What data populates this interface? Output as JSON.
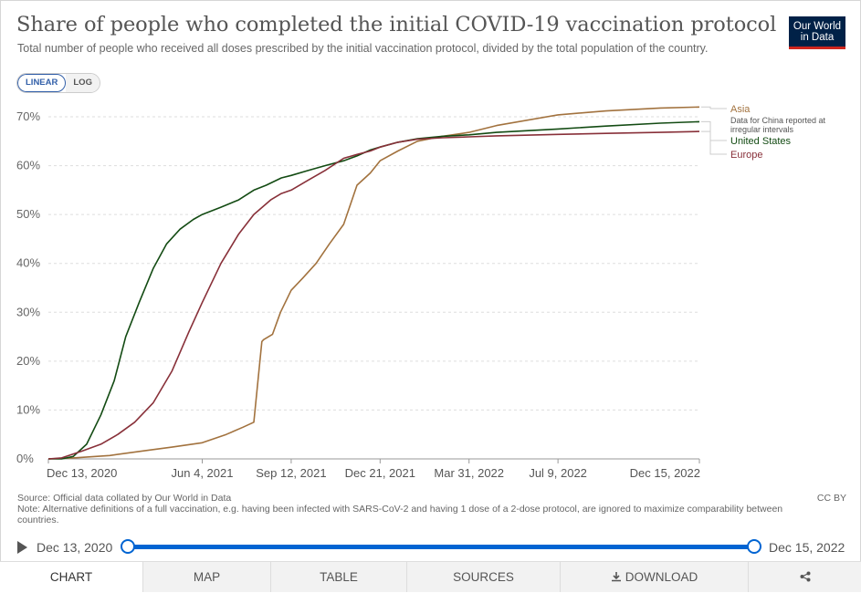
{
  "header": {
    "title": "Share of people who completed the initial COVID-19 vaccination protocol",
    "subtitle": "Total number of people who received all doses prescribed by the initial vaccination protocol, divided by the total population of the country.",
    "logo_line1": "Our World",
    "logo_line2": "in Data"
  },
  "scale_toggle": {
    "linear": "LINEAR",
    "log": "LOG",
    "selected": "LINEAR"
  },
  "footer": {
    "source": "Source: Official data collated by Our World in Data",
    "note": "Note: Alternative definitions of a full vaccination, e.g. having been infected with SARS-CoV-2 and having 1 dose of a 2-dose protocol, are ignored to maximize comparability between countries.",
    "license": "CC BY"
  },
  "timeline": {
    "start": "Dec 13, 2020",
    "end": "Dec 15, 2022"
  },
  "tabs": [
    "CHART",
    "MAP",
    "TABLE",
    "SOURCES",
    "DOWNLOAD"
  ],
  "icons": {
    "download": "download-icon",
    "share": "share-icon",
    "play": "play-icon"
  },
  "chart_data": {
    "type": "line",
    "title": "Share of people who completed the initial COVID-19 vaccination protocol",
    "ylim": [
      0,
      70
    ],
    "yticks": [
      "0%",
      "10%",
      "20%",
      "30%",
      "40%",
      "50%",
      "60%",
      "70%"
    ],
    "ytick_values": [
      0,
      10,
      20,
      30,
      40,
      50,
      60,
      70
    ],
    "xticks": [
      "Dec 13, 2020",
      "Jun 4, 2021",
      "Sep 12, 2021",
      "Dec 21, 2021",
      "Mar 31, 2022",
      "Jul 9, 2022",
      "Dec 15, 2022"
    ],
    "xtick_dates": [
      "2020-12-13",
      "2021-06-04",
      "2021-09-12",
      "2021-12-21",
      "2022-03-31",
      "2022-07-09",
      "2022-12-15"
    ],
    "xlim": [
      "2020-12-13",
      "2022-12-15"
    ],
    "grid": "horizontal dashed",
    "legend": "right",
    "series": [
      {
        "name": "Asia",
        "annotation": "Data for China reported at irregular intervals",
        "color": "#a2723e",
        "x": [
          "2020-12-13",
          "2021-01-10",
          "2021-02-20",
          "2021-04-01",
          "2021-05-01",
          "2021-06-04",
          "2021-07-01",
          "2021-07-20",
          "2021-08-01",
          "2021-08-10",
          "2021-08-12",
          "2021-08-22",
          "2021-08-31",
          "2021-09-12",
          "2021-09-25",
          "2021-10-10",
          "2021-10-25",
          "2021-11-10",
          "2021-11-25",
          "2021-12-10",
          "2021-12-21",
          "2022-01-10",
          "2022-02-01",
          "2022-03-01",
          "2022-03-31",
          "2022-05-01",
          "2022-07-09",
          "2022-09-01",
          "2022-11-01",
          "2022-12-15"
        ],
        "y": [
          0,
          0.2,
          0.7,
          1.7,
          2.4,
          3.3,
          5.0,
          6.5,
          7.5,
          24,
          24.4,
          25.5,
          30,
          34.5,
          37,
          40,
          44,
          48,
          56,
          58.5,
          61,
          63,
          65,
          66,
          66.8,
          68.2,
          70.4,
          71.2,
          71.8,
          72
        ]
      },
      {
        "name": "United States",
        "color": "#134b13",
        "x": [
          "2020-12-13",
          "2020-12-28",
          "2021-01-10",
          "2021-01-25",
          "2021-02-10",
          "2021-02-25",
          "2021-03-10",
          "2021-03-25",
          "2021-04-10",
          "2021-04-25",
          "2021-05-10",
          "2021-05-25",
          "2021-06-04",
          "2021-06-25",
          "2021-07-15",
          "2021-08-01",
          "2021-08-15",
          "2021-09-01",
          "2021-09-12",
          "2021-10-01",
          "2021-10-20",
          "2021-11-10",
          "2021-11-25",
          "2021-12-10",
          "2021-12-21",
          "2022-01-10",
          "2022-02-01",
          "2022-03-01",
          "2022-03-31",
          "2022-05-01",
          "2022-07-09",
          "2022-09-01",
          "2022-11-01",
          "2022-12-15"
        ],
        "y": [
          0,
          0,
          0.5,
          3,
          9,
          16,
          25,
          32,
          39,
          44,
          47,
          49,
          50,
          51.5,
          53,
          55,
          56,
          57.5,
          58,
          59,
          60,
          61,
          62,
          63.2,
          63.8,
          64.8,
          65.5,
          66,
          66.3,
          66.8,
          67.5,
          68.1,
          68.7,
          69
        ]
      },
      {
        "name": "Europe",
        "color": "#883039",
        "x": [
          "2020-12-13",
          "2020-12-28",
          "2021-01-20",
          "2021-02-10",
          "2021-03-01",
          "2021-03-20",
          "2021-04-10",
          "2021-05-01",
          "2021-05-20",
          "2021-06-04",
          "2021-06-25",
          "2021-07-15",
          "2021-08-01",
          "2021-08-20",
          "2021-09-01",
          "2021-09-12",
          "2021-10-01",
          "2021-10-20",
          "2021-11-10",
          "2021-11-25",
          "2021-12-10",
          "2021-12-21",
          "2022-01-10",
          "2022-02-01",
          "2022-03-01",
          "2022-03-31",
          "2022-05-01",
          "2022-07-09",
          "2022-09-01",
          "2022-11-01",
          "2022-12-15"
        ],
        "y": [
          0,
          0.2,
          1.6,
          3,
          5,
          7.5,
          11.5,
          18,
          26,
          32,
          40,
          46,
          50,
          53,
          54.3,
          55,
          57,
          59,
          61.5,
          62.3,
          63,
          63.8,
          64.8,
          65.4,
          65.7,
          65.9,
          66.1,
          66.4,
          66.6,
          66.8,
          67
        ]
      }
    ]
  }
}
